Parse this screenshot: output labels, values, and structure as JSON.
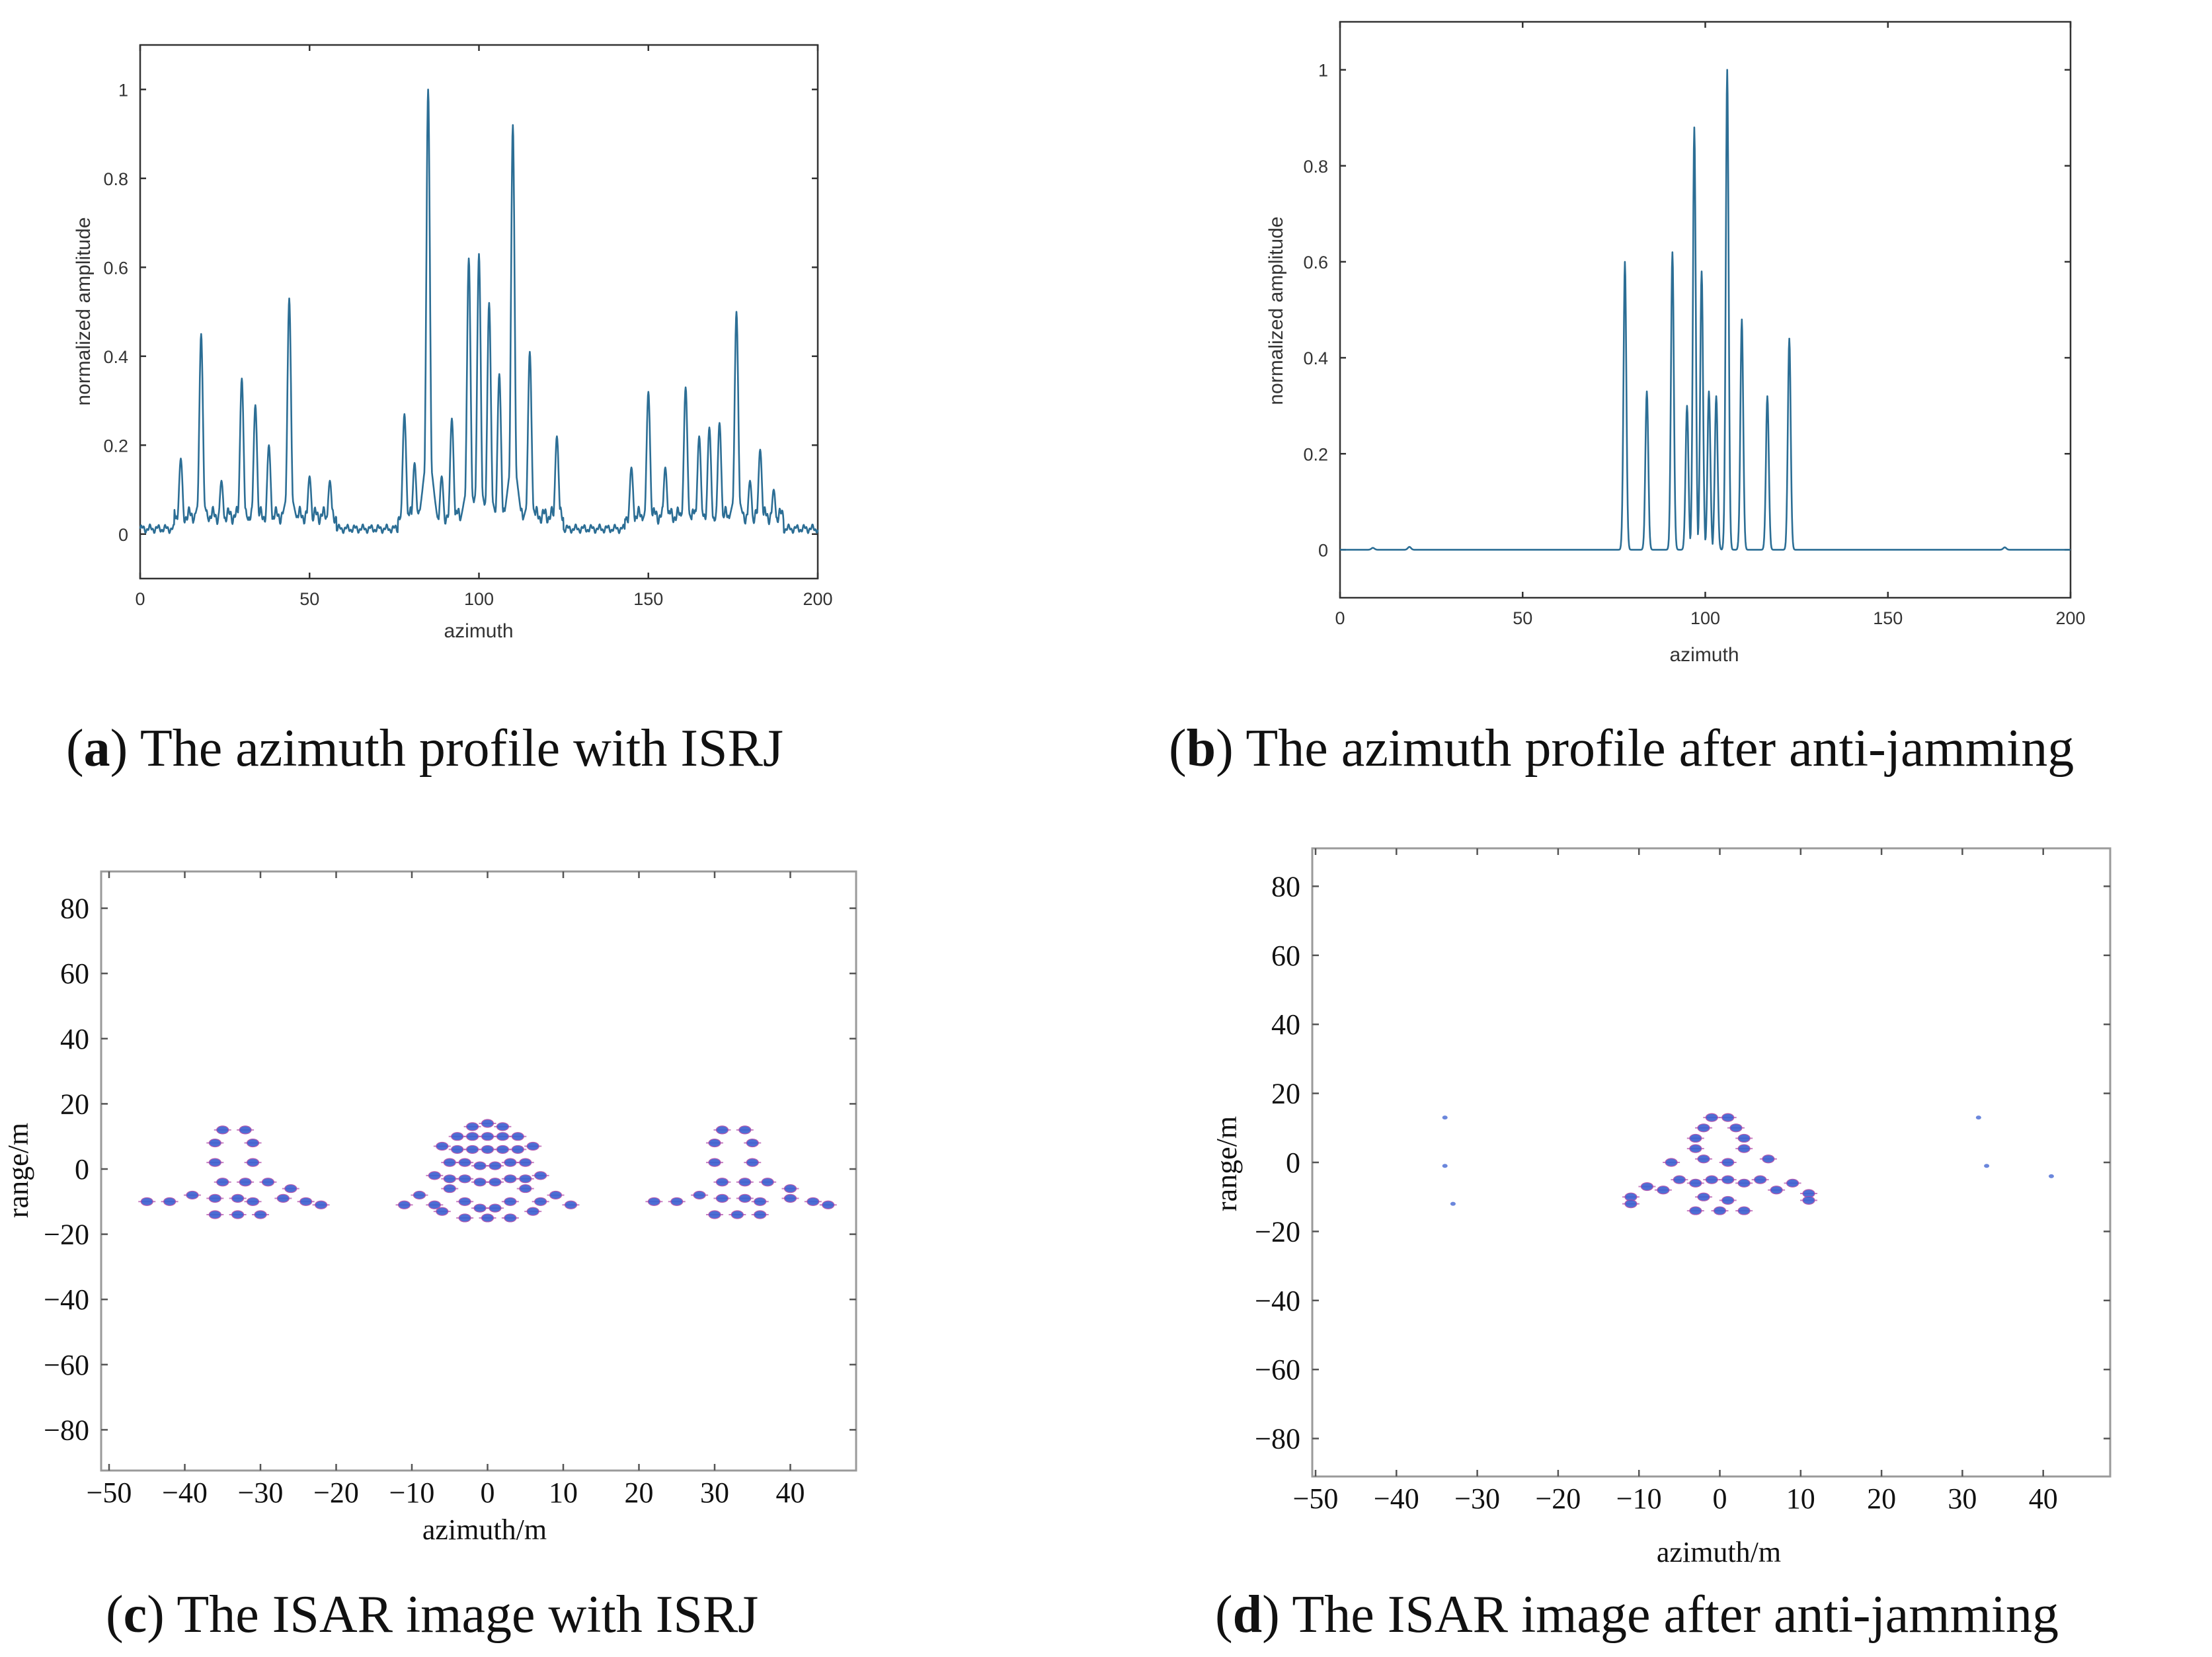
{
  "figure_colors": {
    "profile_line": "#2c6e95",
    "scatter_fill": "#3a5fd0",
    "scatter_edge": "#b04aa8"
  },
  "panels": [
    {
      "id": "a",
      "caption_letter": "a",
      "caption_text": " The azimuth profile with ISRJ"
    },
    {
      "id": "b",
      "caption_letter": "b",
      "caption_text": " The azimuth profile after anti-jamming"
    },
    {
      "id": "c",
      "caption_letter": "c",
      "caption_text": " The ISAR image with ISRJ"
    },
    {
      "id": "d",
      "caption_letter": "d",
      "caption_text": " The ISAR image after anti-jamming"
    }
  ],
  "chart_data": [
    {
      "panel": "a",
      "type": "line",
      "title": "",
      "xlabel": "azimuth",
      "ylabel": "normalized amplitude",
      "xlim": [
        0,
        200
      ],
      "ylim": [
        -0.1,
        1.1
      ],
      "xticks": [
        0,
        50,
        100,
        150,
        200
      ],
      "yticks": [
        0,
        0.2,
        0.4,
        0.6,
        0.8,
        1
      ],
      "baseline": 0.012,
      "peaks": [
        {
          "x": 12,
          "y": 0.17
        },
        {
          "x": 18,
          "y": 0.45
        },
        {
          "x": 24,
          "y": 0.12
        },
        {
          "x": 30,
          "y": 0.35
        },
        {
          "x": 34,
          "y": 0.29
        },
        {
          "x": 38,
          "y": 0.2
        },
        {
          "x": 44,
          "y": 0.53
        },
        {
          "x": 50,
          "y": 0.13
        },
        {
          "x": 56,
          "y": 0.12
        },
        {
          "x": 78,
          "y": 0.27
        },
        {
          "x": 81,
          "y": 0.16
        },
        {
          "x": 85,
          "y": 1.0
        },
        {
          "x": 89,
          "y": 0.13
        },
        {
          "x": 92,
          "y": 0.26
        },
        {
          "x": 97,
          "y": 0.62
        },
        {
          "x": 100,
          "y": 0.63
        },
        {
          "x": 103,
          "y": 0.52
        },
        {
          "x": 106,
          "y": 0.36
        },
        {
          "x": 110,
          "y": 0.92
        },
        {
          "x": 115,
          "y": 0.41
        },
        {
          "x": 123,
          "y": 0.22
        },
        {
          "x": 145,
          "y": 0.15
        },
        {
          "x": 150,
          "y": 0.32
        },
        {
          "x": 155,
          "y": 0.15
        },
        {
          "x": 161,
          "y": 0.33
        },
        {
          "x": 165,
          "y": 0.22
        },
        {
          "x": 168,
          "y": 0.24
        },
        {
          "x": 171,
          "y": 0.25
        },
        {
          "x": 176,
          "y": 0.5
        },
        {
          "x": 180,
          "y": 0.12
        },
        {
          "x": 183,
          "y": 0.19
        },
        {
          "x": 187,
          "y": 0.1
        }
      ],
      "floor_segments": [
        [
          0,
          10
        ],
        [
          58,
          76
        ],
        [
          125,
          143
        ],
        [
          190,
          200
        ]
      ]
    },
    {
      "panel": "b",
      "type": "line",
      "title": "",
      "xlabel": "azimuth",
      "ylabel": "normalized amplitude",
      "xlim": [
        0,
        200
      ],
      "ylim": [
        -0.1,
        1.1
      ],
      "xticks": [
        0,
        50,
        100,
        150,
        200
      ],
      "yticks": [
        0,
        0.2,
        0.4,
        0.6,
        0.8,
        1
      ],
      "baseline": 0,
      "peaks": [
        {
          "x": 78,
          "y": 0.6
        },
        {
          "x": 84,
          "y": 0.33
        },
        {
          "x": 91,
          "y": 0.62
        },
        {
          "x": 95,
          "y": 0.3
        },
        {
          "x": 97,
          "y": 0.88
        },
        {
          "x": 99,
          "y": 0.58
        },
        {
          "x": 101,
          "y": 0.33
        },
        {
          "x": 103,
          "y": 0.32
        },
        {
          "x": 106,
          "y": 1.0
        },
        {
          "x": 110,
          "y": 0.48
        },
        {
          "x": 117,
          "y": 0.32
        },
        {
          "x": 123,
          "y": 0.44
        }
      ],
      "small_bumps": [
        {
          "x": 9,
          "y": 0.004
        },
        {
          "x": 19,
          "y": 0.006
        },
        {
          "x": 182,
          "y": 0.005
        }
      ]
    },
    {
      "panel": "c",
      "type": "scatter",
      "title": "",
      "xlabel": "azimuth/m",
      "ylabel": "range/m",
      "xlim": [
        -50,
        50
      ],
      "ylim": [
        -92,
        92
      ],
      "xticks": [
        -50,
        -40,
        -30,
        -20,
        -10,
        0,
        10,
        20,
        30,
        40
      ],
      "xtick_labels": [
        "−50",
        "−40",
        "−30",
        "−20",
        "−10",
        "0",
        "10",
        "20",
        "30",
        "40"
      ],
      "yticks": [
        80,
        60,
        40,
        20,
        0,
        -20,
        -40,
        -60,
        -80
      ],
      "ytick_labels": [
        "80",
        "60",
        "40",
        "20",
        "0",
        "−20",
        "−40",
        "−60",
        "−80"
      ],
      "points": [
        [
          -45,
          -10
        ],
        [
          -42,
          -10
        ],
        [
          -39,
          -8
        ],
        [
          -36,
          -9
        ],
        [
          -33,
          -9
        ],
        [
          -31,
          -10
        ],
        [
          -27,
          -9
        ],
        [
          -24,
          -10
        ],
        [
          -22,
          -11
        ],
        [
          -35,
          12
        ],
        [
          -32,
          12
        ],
        [
          -36,
          8
        ],
        [
          -31,
          8
        ],
        [
          -36,
          2
        ],
        [
          -31,
          2
        ],
        [
          -35,
          -4
        ],
        [
          -32,
          -4
        ],
        [
          -29,
          -4
        ],
        [
          -26,
          -6
        ],
        [
          -33,
          -14
        ],
        [
          -30,
          -14
        ],
        [
          -36,
          -14
        ],
        [
          -11,
          -11
        ],
        [
          -9,
          -8
        ],
        [
          -7,
          -11
        ],
        [
          -5,
          -6
        ],
        [
          -3,
          -10
        ],
        [
          -1,
          -12
        ],
        [
          1,
          -12
        ],
        [
          3,
          -10
        ],
        [
          5,
          -6
        ],
        [
          7,
          -10
        ],
        [
          9,
          -8
        ],
        [
          11,
          -11
        ],
        [
          -2,
          13
        ],
        [
          0,
          14
        ],
        [
          2,
          13
        ],
        [
          -4,
          10
        ],
        [
          -2,
          10
        ],
        [
          0,
          10
        ],
        [
          2,
          10
        ],
        [
          4,
          10
        ],
        [
          -6,
          7
        ],
        [
          -4,
          6
        ],
        [
          -2,
          6
        ],
        [
          0,
          6
        ],
        [
          2,
          6
        ],
        [
          4,
          6
        ],
        [
          6,
          7
        ],
        [
          -5,
          2
        ],
        [
          -3,
          2
        ],
        [
          -1,
          1
        ],
        [
          1,
          1
        ],
        [
          3,
          2
        ],
        [
          5,
          2
        ],
        [
          -7,
          -2
        ],
        [
          -5,
          -3
        ],
        [
          -3,
          -3
        ],
        [
          -1,
          -4
        ],
        [
          1,
          -4
        ],
        [
          3,
          -3
        ],
        [
          5,
          -3
        ],
        [
          7,
          -2
        ],
        [
          -3,
          -15
        ],
        [
          0,
          -15
        ],
        [
          3,
          -15
        ],
        [
          -6,
          -13
        ],
        [
          6,
          -13
        ],
        [
          22,
          -10
        ],
        [
          25,
          -10
        ],
        [
          28,
          -8
        ],
        [
          31,
          -9
        ],
        [
          34,
          -9
        ],
        [
          36,
          -10
        ],
        [
          40,
          -9
        ],
        [
          43,
          -10
        ],
        [
          45,
          -11
        ],
        [
          31,
          12
        ],
        [
          34,
          12
        ],
        [
          30,
          8
        ],
        [
          35,
          8
        ],
        [
          30,
          2
        ],
        [
          35,
          2
        ],
        [
          31,
          -4
        ],
        [
          34,
          -4
        ],
        [
          37,
          -4
        ],
        [
          40,
          -6
        ],
        [
          33,
          -14
        ],
        [
          36,
          -14
        ],
        [
          30,
          -14
        ]
      ]
    },
    {
      "panel": "d",
      "type": "scatter",
      "title": "",
      "xlabel": "azimuth/m",
      "ylabel": "range/m",
      "xlim": [
        -50,
        50
      ],
      "ylim": [
        -92,
        92
      ],
      "xticks": [
        -50,
        -40,
        -30,
        -20,
        -10,
        0,
        10,
        20,
        30,
        40
      ],
      "xtick_labels": [
        "−50",
        "−40",
        "−30",
        "−20",
        "−10",
        "0",
        "10",
        "20",
        "30",
        "40"
      ],
      "yticks": [
        80,
        60,
        40,
        20,
        0,
        -20,
        -40,
        -60,
        -80
      ],
      "ytick_labels": [
        "80",
        "60",
        "40",
        "20",
        "0",
        "−20",
        "−40",
        "−60",
        "−80"
      ],
      "points": [
        [
          -1,
          13
        ],
        [
          1,
          13
        ],
        [
          -2,
          10
        ],
        [
          2,
          10
        ],
        [
          -3,
          7
        ],
        [
          3,
          7
        ],
        [
          -3,
          4
        ],
        [
          3,
          4
        ],
        [
          -2,
          1
        ],
        [
          1,
          0
        ],
        [
          -6,
          0
        ],
        [
          6,
          1
        ],
        [
          -5,
          -5
        ],
        [
          -3,
          -6
        ],
        [
          -1,
          -5
        ],
        [
          1,
          -5
        ],
        [
          3,
          -6
        ],
        [
          5,
          -5
        ],
        [
          -7,
          -8
        ],
        [
          7,
          -8
        ],
        [
          -9,
          -7
        ],
        [
          -11,
          -10
        ],
        [
          9,
          -6
        ],
        [
          11,
          -9
        ],
        [
          -2,
          -10
        ],
        [
          1,
          -11
        ],
        [
          -3,
          -14
        ],
        [
          0,
          -14
        ],
        [
          3,
          -14
        ],
        [
          11,
          -11
        ],
        [
          -11,
          -12
        ]
      ],
      "faint_points": [
        [
          -34,
          13
        ],
        [
          -34,
          -1
        ],
        [
          -33,
          -12
        ],
        [
          32,
          13
        ],
        [
          33,
          -1
        ],
        [
          41,
          -4
        ]
      ]
    }
  ]
}
